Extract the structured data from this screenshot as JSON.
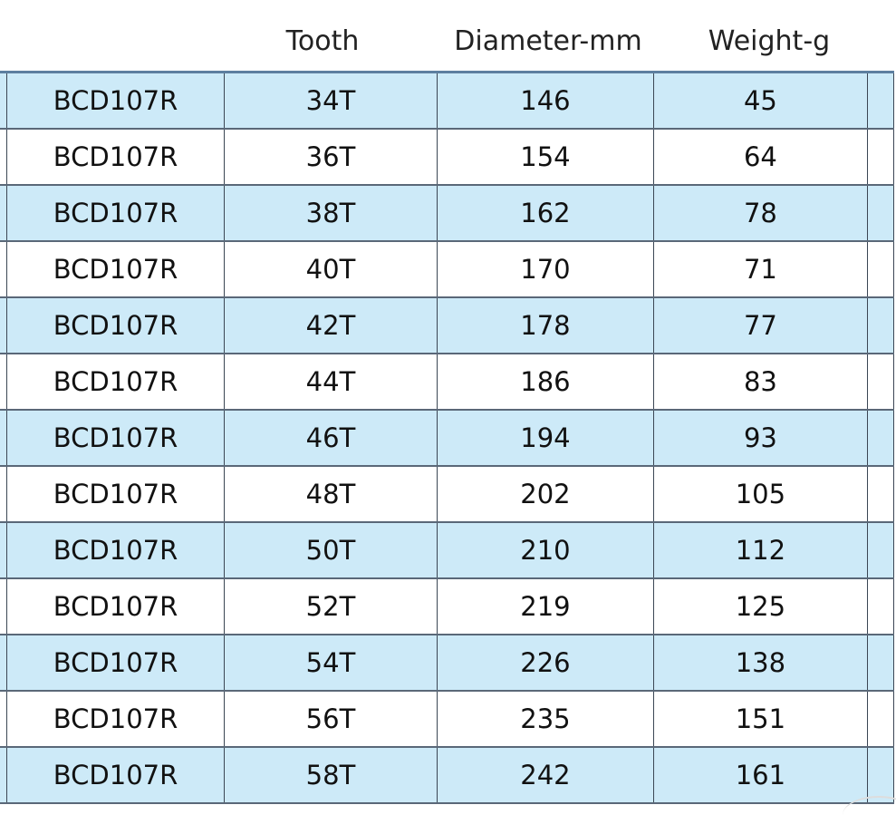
{
  "headers": {
    "col0": "",
    "tooth": "Tooth",
    "diameter": "Diameter-mm",
    "weight": "Weight-g"
  },
  "rows": [
    {
      "model": "BCD107R",
      "tooth": "34T",
      "diameter": "146",
      "weight": "45"
    },
    {
      "model": "BCD107R",
      "tooth": "36T",
      "diameter": "154",
      "weight": "64"
    },
    {
      "model": "BCD107R",
      "tooth": "38T",
      "diameter": "162",
      "weight": "78"
    },
    {
      "model": "BCD107R",
      "tooth": "40T",
      "diameter": "170",
      "weight": "71"
    },
    {
      "model": "BCD107R",
      "tooth": "42T",
      "diameter": "178",
      "weight": "77"
    },
    {
      "model": "BCD107R",
      "tooth": "44T",
      "diameter": "186",
      "weight": "83"
    },
    {
      "model": "BCD107R",
      "tooth": "46T",
      "diameter": "194",
      "weight": "93"
    },
    {
      "model": "BCD107R",
      "tooth": "48T",
      "diameter": "202",
      "weight": "105"
    },
    {
      "model": "BCD107R",
      "tooth": "50T",
      "diameter": "210",
      "weight": "112"
    },
    {
      "model": "BCD107R",
      "tooth": "52T",
      "diameter": "219",
      "weight": "125"
    },
    {
      "model": "BCD107R",
      "tooth": "54T",
      "diameter": "226",
      "weight": "138"
    },
    {
      "model": "BCD107R",
      "tooth": "56T",
      "diameter": "235",
      "weight": "151"
    },
    {
      "model": "BCD107R",
      "tooth": "58T",
      "diameter": "242",
      "weight": "161"
    }
  ],
  "colors": {
    "stripe": "#cdeaf8",
    "border": "#3b4654"
  }
}
